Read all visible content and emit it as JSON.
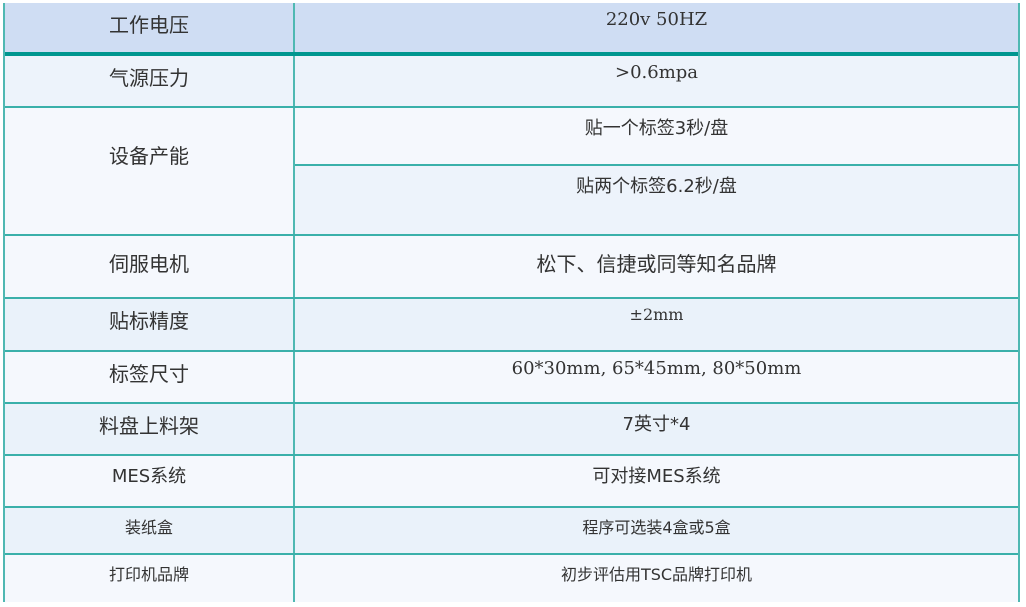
{
  "table": {
    "header": {
      "label": "工作电压",
      "value": "220v 50HZ"
    },
    "rows": [
      {
        "label": "气源压力",
        "value": ">0.6mpa"
      },
      {
        "label": "设备产能",
        "values": [
          "贴一个标签3秒/盘",
          "贴两个标签6.2秒/盘"
        ]
      },
      {
        "label": "伺服电机",
        "value": "松下、信捷或同等知名品牌"
      },
      {
        "label": "贴标精度",
        "value": "±2mm"
      },
      {
        "label": "标签尺寸",
        "value": "60*30mm, 65*45mm, 80*50mm"
      },
      {
        "label": "料盘上料架",
        "value": "7英寸*4"
      },
      {
        "label": "MES系统",
        "value": "可对接MES系统"
      },
      {
        "label": "装纸盒",
        "value": "程序可选装4盒或5盒"
      },
      {
        "label": "打印机品牌",
        "value": "初步评估用TSC品牌打印机"
      }
    ]
  },
  "colors": {
    "border": "#3ab0aa",
    "header_bg": "#cfddf3",
    "header_rule": "#00968f",
    "row_bg_a": "#edf3fb",
    "row_bg_b": "#f5f8fd"
  }
}
